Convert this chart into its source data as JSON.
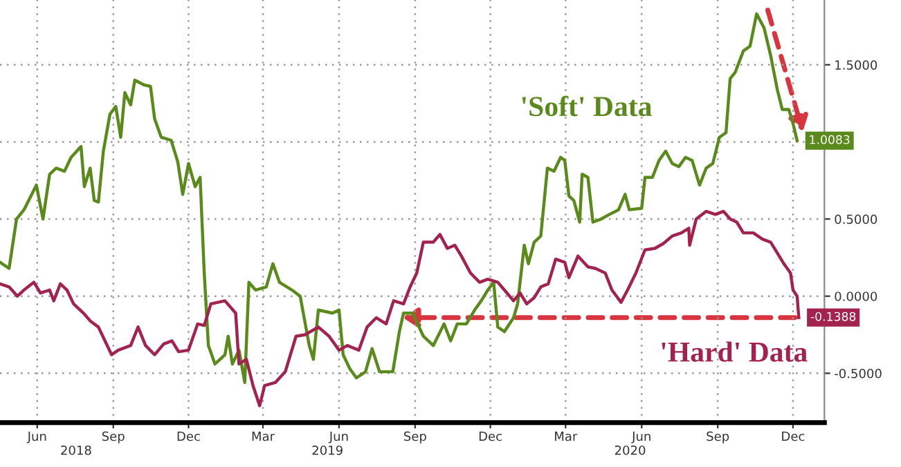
{
  "chart_data": {
    "type": "line",
    "xlim": [
      "2018-05-01",
      "2021-01-22"
    ],
    "xticks": [
      {
        "value": "2018-06-15",
        "label": "Jun"
      },
      {
        "value": "2018-09-15",
        "label": "Sep"
      },
      {
        "value": "2018-12-15",
        "label": "Dec"
      },
      {
        "value": "2019-03-15",
        "label": "Mar"
      },
      {
        "value": "2019-06-15",
        "label": "Jun"
      },
      {
        "value": "2019-09-15",
        "label": "Sep"
      },
      {
        "value": "2019-12-15",
        "label": "Dec"
      },
      {
        "value": "2020-03-15",
        "label": "Mar"
      },
      {
        "value": "2020-06-15",
        "label": "Jun"
      },
      {
        "value": "2020-09-15",
        "label": "Sep"
      },
      {
        "value": "2020-12-15",
        "label": "Dec"
      }
    ],
    "x2lim": [
      "2018-05-01",
      "2021-01-22"
    ],
    "x2ticks": [
      {
        "value": "2018-08",
        "label": "2018"
      },
      {
        "value": "2019-06",
        "label": "2019"
      },
      {
        "value": "2020-06",
        "label": "2020"
      }
    ],
    "ylim": [
      -0.82,
      1.92
    ],
    "yticks": [
      {
        "value": -0.5,
        "label": "-0.5000"
      },
      {
        "value": 0,
        "label": "0.0000"
      },
      {
        "value": 0.5,
        "label": "0.5000"
      },
      {
        "value": 1.0,
        "label": null
      },
      {
        "value": 1.5,
        "label": "1.5000"
      }
    ],
    "grid": true,
    "line_style": "solid",
    "series": [
      {
        "name": "'Soft' Data",
        "color": "#5b8a1c",
        "x": [
          "2018-05-01",
          "2018-05-12",
          "2018-05-21",
          "2018-05-30",
          "2018-06-14",
          "2018-06-22",
          "2018-06-30",
          "2018-07-08",
          "2018-07-18",
          "2018-07-26",
          "2018-08-07",
          "2018-08-11",
          "2018-08-18",
          "2018-08-23",
          "2018-08-28",
          "2018-09-03",
          "2018-09-11",
          "2018-09-18",
          "2018-09-24",
          "2018-09-29",
          "2018-10-06",
          "2018-10-11",
          "2018-10-22",
          "2018-10-30",
          "2018-11-04",
          "2018-11-12",
          "2018-11-24",
          "2018-12-02",
          "2018-12-08",
          "2018-12-15",
          "2018-12-23",
          "2018-12-29",
          "2019-01-03",
          "2019-01-08",
          "2019-01-16",
          "2019-01-28",
          "2019-02-01",
          "2019-02-06",
          "2019-02-14",
          "2019-02-21",
          "2019-02-26",
          "2019-03-06",
          "2019-03-19",
          "2019-03-27",
          "2019-04-04",
          "2019-04-19",
          "2019-04-29",
          "2019-05-10",
          "2019-05-15",
          "2019-05-21",
          "2019-06-07",
          "2019-06-15",
          "2019-06-20",
          "2019-06-28",
          "2019-07-06",
          "2019-07-17",
          "2019-07-25",
          "2019-08-03",
          "2019-08-11",
          "2019-08-19",
          "2019-08-27",
          "2019-09-01",
          "2019-09-12",
          "2019-09-25",
          "2019-10-07",
          "2019-10-20",
          "2019-10-28",
          "2019-11-05",
          "2019-11-16",
          "2019-11-26",
          "2019-12-04",
          "2019-12-12",
          "2019-12-19",
          "2019-12-24",
          "2020-01-01",
          "2020-01-12",
          "2020-01-17",
          "2020-01-25",
          "2020-01-30",
          "2020-02-06",
          "2020-02-14",
          "2020-02-22",
          "2020-03-01",
          "2020-03-09",
          "2020-03-14",
          "2020-03-19",
          "2020-03-25",
          "2020-04-01",
          "2020-04-04",
          "2020-04-11",
          "2020-04-17",
          "2020-04-27",
          "2020-05-07",
          "2020-05-18",
          "2020-05-26",
          "2020-05-31",
          "2020-06-15",
          "2020-06-19",
          "2020-06-28",
          "2020-07-06",
          "2020-07-14",
          "2020-07-22",
          "2020-07-30",
          "2020-08-07",
          "2020-08-15",
          "2020-08-24",
          "2020-09-01",
          "2020-09-09",
          "2020-09-17",
          "2020-09-25",
          "2020-09-30",
          "2020-10-06",
          "2020-10-16",
          "2020-10-24",
          "2020-11-01",
          "2020-11-10",
          "2020-11-18",
          "2020-11-26",
          "2020-12-02",
          "2020-12-10",
          "2020-12-15",
          "2020-12-20"
        ],
        "values": [
          0.22,
          0.18,
          0.5,
          0.56,
          0.72,
          0.5,
          0.79,
          0.83,
          0.81,
          0.9,
          0.97,
          0.71,
          0.83,
          0.62,
          0.61,
          0.94,
          1.18,
          1.23,
          1.03,
          1.32,
          1.24,
          1.4,
          1.37,
          1.36,
          1.15,
          1.03,
          1.01,
          0.87,
          0.66,
          0.86,
          0.71,
          0.77,
          0.15,
          -0.32,
          -0.44,
          -0.38,
          -0.26,
          -0.44,
          -0.35,
          -0.56,
          0.09,
          0.04,
          0.06,
          0.21,
          0.09,
          0.04,
          0.0,
          -0.32,
          -0.41,
          -0.09,
          -0.11,
          -0.09,
          -0.38,
          -0.47,
          -0.53,
          -0.49,
          -0.34,
          -0.49,
          -0.49,
          -0.49,
          -0.23,
          -0.11,
          -0.11,
          -0.26,
          -0.32,
          -0.18,
          -0.29,
          -0.18,
          -0.18,
          -0.09,
          -0.03,
          0.04,
          0.09,
          -0.2,
          -0.23,
          -0.14,
          -0.05,
          0.33,
          0.21,
          0.35,
          0.39,
          0.83,
          0.81,
          0.9,
          0.88,
          0.65,
          0.62,
          0.48,
          0.79,
          0.77,
          0.48,
          0.5,
          0.53,
          0.56,
          0.66,
          0.56,
          0.57,
          0.77,
          0.77,
          0.88,
          0.94,
          0.86,
          0.84,
          0.9,
          0.88,
          0.72,
          0.83,
          0.86,
          1.03,
          1.06,
          1.41,
          1.45,
          1.59,
          1.62,
          1.83,
          1.74,
          1.56,
          1.34,
          1.21,
          1.21,
          1.12,
          1.0083
        ],
        "value_labels": [
          null,
          null,
          null,
          null,
          null,
          null,
          null,
          null,
          null,
          null,
          null,
          null,
          null,
          null,
          null,
          null,
          null,
          null,
          null,
          null,
          null,
          null,
          null,
          null,
          null,
          null,
          null,
          null,
          null,
          null,
          null,
          null,
          null,
          null,
          null,
          null,
          null,
          null,
          null,
          null,
          null,
          null,
          null,
          null,
          null,
          null,
          null,
          null,
          null,
          null,
          null,
          null,
          null,
          null,
          null,
          null,
          null,
          null,
          null,
          null,
          null,
          null,
          null,
          null,
          null,
          null,
          null,
          null,
          null,
          null,
          null,
          null,
          null,
          null,
          null,
          null,
          null,
          null,
          null,
          null,
          null,
          null,
          null,
          null,
          null,
          null,
          null,
          null,
          null,
          null,
          null,
          null,
          null,
          null,
          null,
          null,
          null,
          null,
          null,
          null,
          null,
          null,
          null,
          null,
          null,
          null,
          null,
          null,
          null,
          null,
          null,
          null,
          null,
          null,
          null,
          null,
          null,
          null,
          null,
          null,
          null,
          "1.0083"
        ]
      },
      {
        "name": "'Hard' Data",
        "color": "#a3234f",
        "x": [
          "2018-05-01",
          "2018-05-12",
          "2018-05-22",
          "2018-05-30",
          "2018-06-11",
          "2018-06-19",
          "2018-06-30",
          "2018-07-05",
          "2018-07-13",
          "2018-07-21",
          "2018-07-29",
          "2018-08-10",
          "2018-08-18",
          "2018-08-28",
          "2018-09-05",
          "2018-09-13",
          "2018-09-21",
          "2018-10-06",
          "2018-10-15",
          "2018-10-24",
          "2018-11-04",
          "2018-11-15",
          "2018-11-25",
          "2018-12-03",
          "2018-12-15",
          "2018-12-26",
          "2019-01-03",
          "2019-01-11",
          "2019-01-28",
          "2019-02-10",
          "2019-02-14",
          "2019-02-23",
          "2019-03-03",
          "2019-03-11",
          "2019-03-17",
          "2019-03-30",
          "2019-04-11",
          "2019-04-24",
          "2019-05-05",
          "2019-05-21",
          "2019-06-03",
          "2019-06-15",
          "2019-06-25",
          "2019-07-09",
          "2019-07-19",
          "2019-07-30",
          "2019-08-11",
          "2019-08-20",
          "2019-09-01",
          "2019-09-09",
          "2019-09-17",
          "2019-09-25",
          "2019-10-07",
          "2019-10-15",
          "2019-10-24",
          "2019-11-02",
          "2019-11-10",
          "2019-11-21",
          "2019-12-02",
          "2019-12-12",
          "2019-12-24",
          "2020-01-01",
          "2020-01-12",
          "2020-01-20",
          "2020-01-28",
          "2020-02-06",
          "2020-02-14",
          "2020-02-23",
          "2020-03-03",
          "2020-03-14",
          "2020-03-19",
          "2020-03-30",
          "2020-04-11",
          "2020-04-20",
          "2020-05-02",
          "2020-05-10",
          "2020-05-21",
          "2020-05-29",
          "2020-06-08",
          "2020-06-19",
          "2020-07-01",
          "2020-07-11",
          "2020-07-22",
          "2020-08-02",
          "2020-08-11",
          "2020-08-12",
          "2020-08-20",
          "2020-09-01",
          "2020-09-12",
          "2020-09-22",
          "2020-09-30",
          "2020-10-08",
          "2020-10-16",
          "2020-10-28",
          "2020-11-08",
          "2020-11-18",
          "2020-11-26",
          "2020-12-04",
          "2020-12-12",
          "2020-12-15",
          "2020-12-20",
          "2020-12-22"
        ],
        "values": [
          0.08,
          0.06,
          0.0,
          0.04,
          0.09,
          0.02,
          0.04,
          -0.03,
          0.08,
          0.04,
          -0.05,
          -0.11,
          -0.16,
          -0.2,
          -0.29,
          -0.38,
          -0.35,
          -0.32,
          -0.2,
          -0.32,
          -0.38,
          -0.31,
          -0.29,
          -0.36,
          -0.35,
          -0.18,
          -0.19,
          -0.05,
          -0.03,
          -0.11,
          -0.44,
          -0.41,
          -0.58,
          -0.71,
          -0.58,
          -0.56,
          -0.49,
          -0.26,
          -0.25,
          -0.2,
          -0.26,
          -0.35,
          -0.32,
          -0.35,
          -0.2,
          -0.14,
          -0.18,
          -0.03,
          -0.05,
          0.06,
          0.15,
          0.35,
          0.35,
          0.4,
          0.31,
          0.33,
          0.26,
          0.15,
          0.09,
          0.11,
          0.09,
          0.04,
          -0.03,
          0.02,
          -0.05,
          -0.01,
          0.06,
          0.08,
          0.24,
          0.22,
          0.12,
          0.26,
          0.19,
          0.18,
          0.15,
          0.04,
          -0.04,
          0.04,
          0.15,
          0.3,
          0.31,
          0.34,
          0.39,
          0.41,
          0.44,
          0.33,
          0.5,
          0.55,
          0.53,
          0.55,
          0.5,
          0.48,
          0.41,
          0.41,
          0.37,
          0.35,
          0.28,
          0.21,
          0.15,
          0.04,
          0.0,
          -0.1388
        ],
        "value_labels": [
          null,
          null,
          null,
          null,
          null,
          null,
          null,
          null,
          null,
          null,
          null,
          null,
          null,
          null,
          null,
          null,
          null,
          null,
          null,
          null,
          null,
          null,
          null,
          null,
          null,
          null,
          null,
          null,
          null,
          null,
          null,
          null,
          null,
          null,
          null,
          null,
          null,
          null,
          null,
          null,
          null,
          null,
          null,
          null,
          null,
          null,
          null,
          null,
          null,
          null,
          null,
          null,
          null,
          null,
          null,
          null,
          null,
          null,
          null,
          null,
          null,
          null,
          null,
          null,
          null,
          null,
          null,
          null,
          null,
          null,
          null,
          null,
          null,
          null,
          null,
          null,
          null,
          null,
          null,
          null,
          null,
          null,
          null,
          null,
          null,
          null,
          null,
          null,
          null,
          null,
          null,
          null,
          null,
          null,
          null,
          null,
          null,
          null,
          null,
          null,
          null,
          "-0.1388"
        ]
      }
    ]
  }
}
